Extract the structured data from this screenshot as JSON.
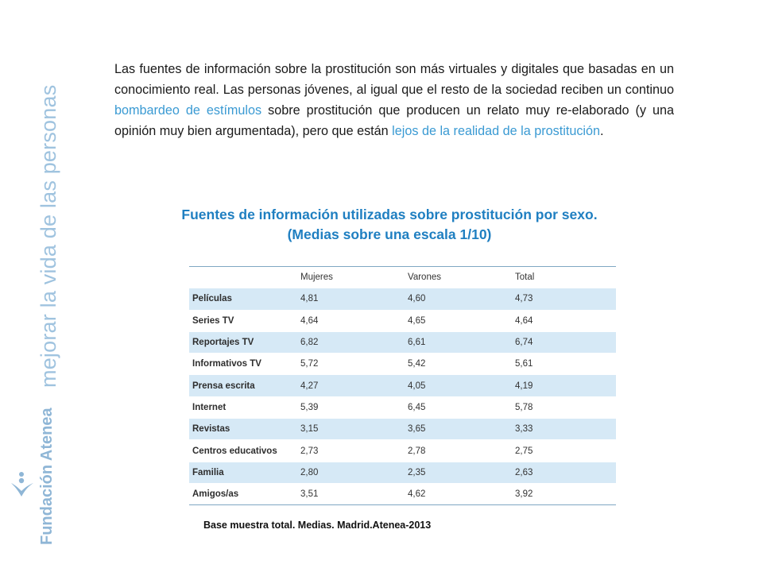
{
  "sidebar": {
    "tagline": "mejorar la vida de las personas",
    "brand": "Fundación Atenea",
    "logo_icon": "atenea-figure-icon"
  },
  "intro": {
    "p1": "Las fuentes de información sobre la prostitución son más virtuales y digitales que basadas en un conocimiento real. Las personas jóvenes, al igual que el resto de la sociedad reciben un continuo ",
    "hl1": "bombardeo de estímulos",
    "p2": " sobre prostitución que producen un relato muy re-elaborado (y una opinión muy bien argumentada), pero que están ",
    "hl2": "lejos de la realidad de la prostitución",
    "p3": "."
  },
  "title": {
    "line1": "Fuentes de información utilizadas sobre prostitución por sexo.",
    "line2": "(Medias sobre una escala 1/10)"
  },
  "table": {
    "headers": [
      "",
      "Mujeres",
      "Varones",
      "Total"
    ],
    "rows": [
      {
        "label": "Películas",
        "mujeres": "4,81",
        "varones": "4,60",
        "total": "4,73"
      },
      {
        "label": "Series TV",
        "mujeres": "4,64",
        "varones": "4,65",
        "total": "4,64"
      },
      {
        "label": "Reportajes TV",
        "mujeres": "6,82",
        "varones": "6,61",
        "total": "6,74"
      },
      {
        "label": "Informativos TV",
        "mujeres": "5,72",
        "varones": "5,42",
        "total": "5,61"
      },
      {
        "label": "Prensa escrita",
        "mujeres": "4,27",
        "varones": "4,05",
        "total": "4,19"
      },
      {
        "label": "Internet",
        "mujeres": "5,39",
        "varones": "6,45",
        "total": "5,78"
      },
      {
        "label": "Revistas",
        "mujeres": "3,15",
        "varones": "3,65",
        "total": "3,33"
      },
      {
        "label": "Centros educativos",
        "mujeres": "2,73",
        "varones": "2,78",
        "total": "2,75"
      },
      {
        "label": "Familia",
        "mujeres": "2,80",
        "varones": "2,35",
        "total": "2,63"
      },
      {
        "label": "Amigos/as",
        "mujeres": "3,51",
        "varones": "4,62",
        "total": "3,92"
      }
    ]
  },
  "source": "Base muestra total. Medias. Madrid.Atenea-2013",
  "colors": {
    "accent": "#1f7fc1",
    "highlight": "#3a9ad3",
    "row_shade": "#d6e9f6",
    "brand": "#8fb6d6"
  }
}
